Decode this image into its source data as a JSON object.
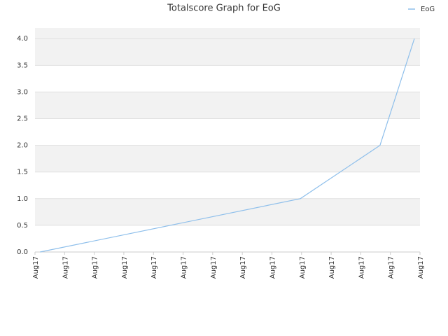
{
  "chart_data": {
    "type": "line",
    "title": "Totalscore Graph for EoG",
    "xlim": [
      0,
      13
    ],
    "xticks": [
      {
        "value": 0,
        "label": "Aug17"
      },
      {
        "value": 1,
        "label": "Aug17"
      },
      {
        "value": 2,
        "label": "Aug17"
      },
      {
        "value": 3,
        "label": "Aug17"
      },
      {
        "value": 4,
        "label": "Aug17"
      },
      {
        "value": 5,
        "label": "Aug17"
      },
      {
        "value": 6,
        "label": "Aug17"
      },
      {
        "value": 7,
        "label": "Aug17"
      },
      {
        "value": 8,
        "label": "Aug17"
      },
      {
        "value": 9,
        "label": "Aug17"
      },
      {
        "value": 10,
        "label": "Aug17"
      },
      {
        "value": 11,
        "label": "Aug17"
      },
      {
        "value": 12,
        "label": "Aug17"
      },
      {
        "value": 13,
        "label": "Aug17"
      }
    ],
    "x": [
      0.17,
      8.96,
      11.65,
      12.81
    ],
    "series": [
      {
        "name": "EoG",
        "color": "#8ebfeb",
        "values": [
          0,
          1,
          2,
          4
        ]
      }
    ],
    "ylim": [
      0,
      4.2
    ],
    "yticks": [
      {
        "value": 0,
        "label": "0.0"
      },
      0.5,
      {
        "value": 1,
        "label": "1.0"
      },
      1.5,
      {
        "value": 2,
        "label": "2.0"
      },
      2.5,
      {
        "value": 3,
        "label": "3.0"
      },
      3.5,
      {
        "value": 4,
        "label": "4.0"
      }
    ],
    "grid": true,
    "legend": "top-right"
  }
}
